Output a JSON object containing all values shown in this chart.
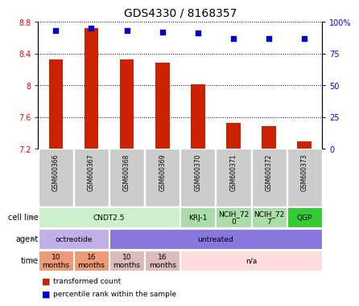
{
  "title": "GDS4330 / 8168357",
  "samples": [
    "GSM600366",
    "GSM600367",
    "GSM600368",
    "GSM600369",
    "GSM600370",
    "GSM600371",
    "GSM600372",
    "GSM600373"
  ],
  "bar_values": [
    8.32,
    8.72,
    8.32,
    8.28,
    8.01,
    7.52,
    7.48,
    7.29
  ],
  "percentile_values": [
    93,
    95,
    93,
    92,
    91,
    87,
    87,
    87
  ],
  "ylim_left": [
    7.2,
    8.8
  ],
  "ylim_right": [
    0,
    100
  ],
  "yticks_left": [
    7.2,
    7.6,
    8.0,
    8.4,
    8.8
  ],
  "ytick_labels_left": [
    "7.2",
    "7.6",
    "8",
    "8.4",
    "8.8"
  ],
  "yticks_right": [
    0,
    25,
    50,
    75,
    100
  ],
  "ytick_labels_right": [
    "0",
    "25",
    "50",
    "75",
    "100%"
  ],
  "bar_color": "#cc2200",
  "dot_color": "#0000cc",
  "bar_bottom": 7.2,
  "cell_line_groups": [
    {
      "label": "CNDT2.5",
      "span": [
        0,
        4
      ],
      "color": "#ccf0cc"
    },
    {
      "label": "KRJ-1",
      "span": [
        4,
        5
      ],
      "color": "#aaddaa"
    },
    {
      "label": "NCIH_72\n0",
      "span": [
        5,
        6
      ],
      "color": "#aaddaa"
    },
    {
      "label": "NCIH_72\n7",
      "span": [
        6,
        7
      ],
      "color": "#aaddaa"
    },
    {
      "label": "QGP",
      "span": [
        7,
        8
      ],
      "color": "#33cc33"
    }
  ],
  "agent_groups": [
    {
      "label": "octreotide",
      "span": [
        0,
        2
      ],
      "color": "#c0b0e8"
    },
    {
      "label": "untreated",
      "span": [
        2,
        8
      ],
      "color": "#8877dd"
    }
  ],
  "time_groups": [
    {
      "label": "10\nmonths",
      "span": [
        0,
        1
      ],
      "color": "#ee9977"
    },
    {
      "label": "16\nmonths",
      "span": [
        1,
        2
      ],
      "color": "#ee9977"
    },
    {
      "label": "10\nmonths",
      "span": [
        2,
        3
      ],
      "color": "#ddbbbb"
    },
    {
      "label": "16\nmonths",
      "span": [
        3,
        4
      ],
      "color": "#ddbbbb"
    },
    {
      "label": "n/a",
      "span": [
        4,
        8
      ],
      "color": "#ffdddd"
    }
  ],
  "sample_bg_color": "#cccccc",
  "row_labels": [
    "cell line",
    "agent",
    "time"
  ],
  "legend_items": [
    {
      "color": "#cc2200",
      "label": "transformed count"
    },
    {
      "color": "#0000cc",
      "label": "percentile rank within the sample"
    }
  ]
}
